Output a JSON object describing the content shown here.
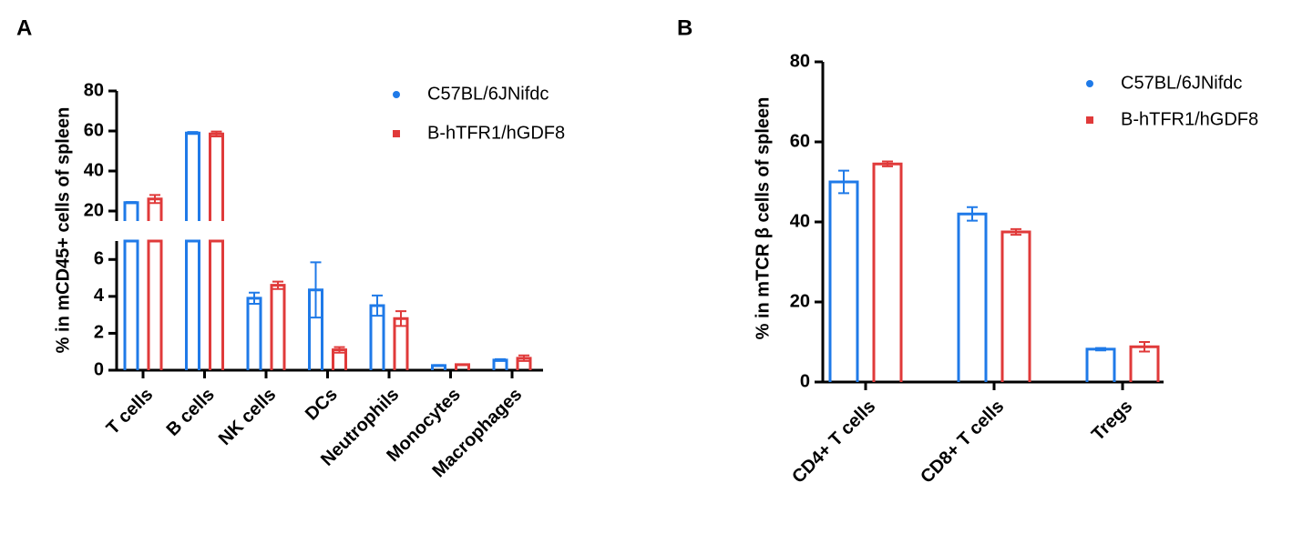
{
  "chart_data": [
    {
      "type": "bar",
      "panel_label": "A",
      "ylabel": "% in mCD45+ cells of spleen",
      "categories": [
        "T cells",
        "B cells",
        "NK cells",
        "DCs",
        "Neutrophils",
        "Monocytes",
        "Macrophages"
      ],
      "y_segments": [
        {
          "ylim": [
            15,
            80
          ],
          "yticks": [
            20,
            40,
            60,
            80
          ]
        },
        {
          "ylim": [
            0,
            7
          ],
          "yticks": [
            0,
            2,
            4,
            6
          ]
        }
      ],
      "series": [
        {
          "name": "C57BL/6JNifdc",
          "color": "#1f7ae8",
          "marker": "circle",
          "values": [
            24.2,
            59,
            3.9,
            4.35,
            3.5,
            0.25,
            0.55
          ],
          "errors": [
            0.3,
            0.5,
            0.3,
            1.5,
            0.55,
            0.03,
            0.05
          ]
        },
        {
          "name": "B-hTFR1/hGDF8",
          "color": "#e03a3a",
          "marker": "square",
          "values": [
            26,
            58.5,
            4.6,
            1.1,
            2.8,
            0.3,
            0.65
          ],
          "errors": [
            2,
            1.2,
            0.2,
            0.15,
            0.4,
            0.02,
            0.15
          ]
        }
      ]
    },
    {
      "type": "bar",
      "panel_label": "B",
      "ylabel": "% in mTCR β cells of spleen",
      "categories": [
        "CD4+ T cells",
        "CD8+ T cells",
        "Tregs"
      ],
      "ylim": [
        0,
        80
      ],
      "yticks": [
        0,
        20,
        40,
        60,
        80
      ],
      "series": [
        {
          "name": "C57BL/6JNifdc",
          "color": "#1f7ae8",
          "marker": "circle",
          "values": [
            50,
            42,
            8.2
          ],
          "errors": [
            2.8,
            1.7,
            0.3
          ]
        },
        {
          "name": "B-hTFR1/hGDF8",
          "color": "#e03a3a",
          "marker": "square",
          "values": [
            54.5,
            37.5,
            8.8
          ],
          "errors": [
            0.6,
            0.7,
            1.2
          ]
        }
      ]
    }
  ]
}
